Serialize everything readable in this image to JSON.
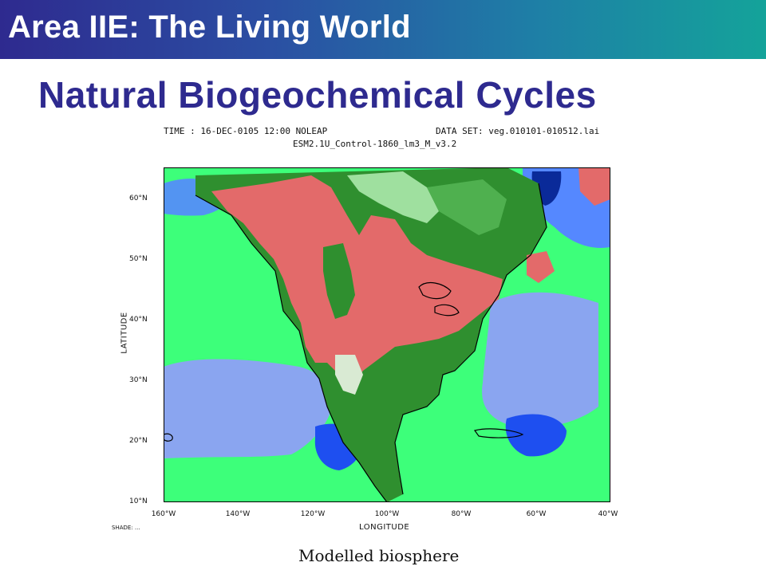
{
  "header": {
    "title": "Area IIE: The Living World"
  },
  "slide": {
    "title": "Natural Biogeochemical Cycles"
  },
  "map": {
    "time_label": "TIME : 16-DEC-0105 12:00 NOLEAP",
    "dataset_label": "DATA SET: veg.010101-010512.lai",
    "run_label": "ESM2.1U_Control-1860_lm3_M_v3.2",
    "lat_axis_title": "LATITUDE",
    "lon_axis_title": "LONGITUDE",
    "lat_labels": [
      "60°N",
      "50°N",
      "40°N",
      "30°N",
      "20°N",
      "10°N"
    ],
    "lon_labels": [
      "160°W",
      "140°W",
      "120°W",
      "100°W",
      "80°W",
      "60°W",
      "40°W"
    ],
    "shade_note": "SHADE: ...",
    "colors": {
      "deep_ocean": "#0033cc",
      "ocean_blue": "#5588ff",
      "ocean_light": "#8aa5f0",
      "sea_green": "#3dff7a",
      "red": "#e36a6a",
      "dark_green": "#2f8f2f",
      "mid_green": "#4fb04f",
      "light_green": "#9fe09f",
      "pale": "#d9ead3",
      "coast": "#000000"
    }
  },
  "caption": "Modelled biosphere"
}
